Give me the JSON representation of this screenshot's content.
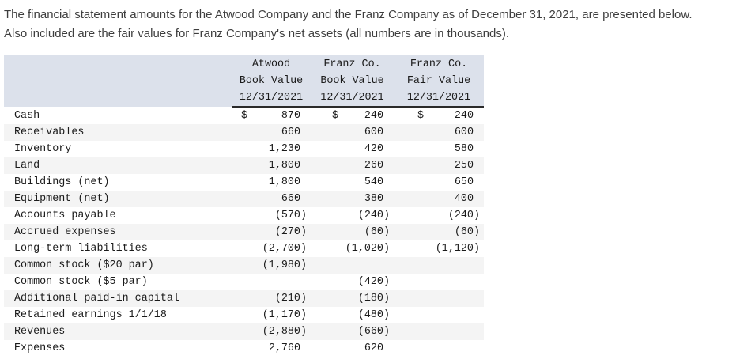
{
  "intro": {
    "line1": "The financial statement amounts for the Atwood Company and the Franz Company as of December 31, 2021, are presented below.",
    "line2": "Also included are the fair values for Franz Company's net assets (all numbers are in thousands)."
  },
  "table": {
    "header": {
      "col1": [
        "Atwood",
        "Book Value",
        "12/31/2021"
      ],
      "col2": [
        "Franz Co.",
        "Book Value",
        "12/31/2021"
      ],
      "col3": [
        "Franz Co.",
        "Fair Value",
        "12/31/2021"
      ]
    },
    "rows": [
      {
        "label": "Cash",
        "dollar": true,
        "v1": "870",
        "v2": "240",
        "v3": "240"
      },
      {
        "label": "Receivables",
        "dollar": false,
        "v1": "660",
        "v2": "600",
        "v3": "600"
      },
      {
        "label": "Inventory",
        "dollar": false,
        "v1": "1,230",
        "v2": "420",
        "v3": "580"
      },
      {
        "label": "Land",
        "dollar": false,
        "v1": "1,800",
        "v2": "260",
        "v3": "250"
      },
      {
        "label": "Buildings (net)",
        "dollar": false,
        "v1": "1,800",
        "v2": "540",
        "v3": "650"
      },
      {
        "label": "Equipment (net)",
        "dollar": false,
        "v1": "660",
        "v2": "380",
        "v3": "400"
      },
      {
        "label": "Accounts payable",
        "dollar": false,
        "v1": "(570)",
        "v2": "(240)",
        "v3": "(240)"
      },
      {
        "label": "Accrued expenses",
        "dollar": false,
        "v1": "(270)",
        "v2": "(60)",
        "v3": "(60)"
      },
      {
        "label": "Long-term liabilities",
        "dollar": false,
        "v1": "(2,700)",
        "v2": "(1,020)",
        "v3": "(1,120)"
      },
      {
        "label": "Common stock ($20 par)",
        "dollar": false,
        "v1": "(1,980)",
        "v2": "",
        "v3": ""
      },
      {
        "label": "Common stock ($5 par)",
        "dollar": false,
        "v1": "",
        "v2": "(420)",
        "v3": ""
      },
      {
        "label": "Additional paid-in capital",
        "dollar": false,
        "v1": "(210)",
        "v2": "(180)",
        "v3": ""
      },
      {
        "label": "Retained earnings 1/1/18",
        "dollar": false,
        "v1": "(1,170)",
        "v2": "(480)",
        "v3": ""
      },
      {
        "label": "Revenues",
        "dollar": false,
        "v1": "(2,880)",
        "v2": "(660)",
        "v3": ""
      },
      {
        "label": "Expenses",
        "dollar": false,
        "v1": "2,760",
        "v2": "620",
        "v3": ""
      }
    ],
    "currency_symbol": "$"
  },
  "colors": {
    "header_bg": "#dce1eb",
    "stripe_bg": "#f4f4f4",
    "header_rule": "#2a2a2a",
    "table_text": "#1b1b1b",
    "intro_text": "#3e3e3e"
  }
}
